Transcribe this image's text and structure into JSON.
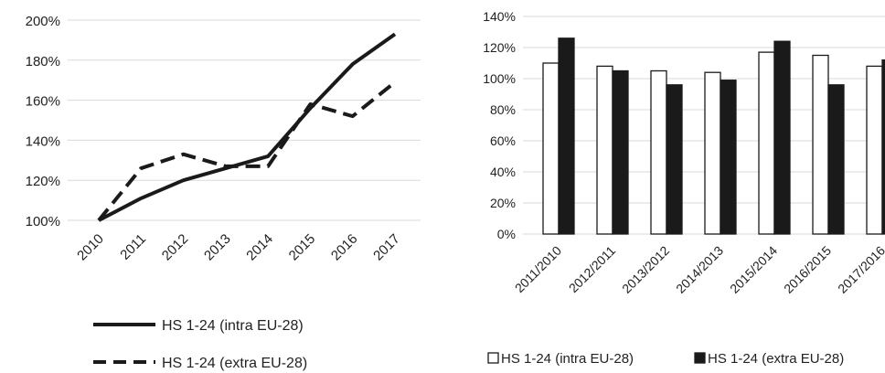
{
  "chart_data": [
    {
      "type": "line",
      "x": [
        "2010",
        "2011",
        "2012",
        "2013",
        "2014",
        "2015",
        "2016",
        "2017"
      ],
      "series": [
        {
          "name": "HS 1-24 (intra EU-28)",
          "style": "solid",
          "values": [
            100,
            111,
            120,
            126,
            132,
            156,
            178,
            193
          ]
        },
        {
          "name": "HS 1-24 (extra EU-28)",
          "style": "dashed",
          "values": [
            100,
            126,
            133,
            127,
            127,
            158,
            152,
            169
          ]
        }
      ],
      "ylim": [
        100,
        200
      ],
      "yticks": [
        "100%",
        "120%",
        "140%",
        "160%",
        "180%",
        "200%"
      ],
      "grid": true,
      "legend_position": "bottom",
      "colors": {
        "line": "#1a1a1a",
        "grid": "#d9d9d9"
      }
    },
    {
      "type": "bar",
      "categories": [
        "2011/2010",
        "2012/2011",
        "2013/2012",
        "2014/2013",
        "2015/2014",
        "2016/2015",
        "2017/2016"
      ],
      "series": [
        {
          "name": "HS 1-24 (intra EU-28)",
          "fill": "white",
          "values": [
            110,
            108,
            105,
            104,
            117,
            115,
            108
          ]
        },
        {
          "name": "HS 1-24 (extra EU-28)",
          "fill": "dark",
          "values": [
            126,
            105,
            96,
            99,
            124,
            96,
            112
          ]
        }
      ],
      "ylim": [
        0,
        140
      ],
      "yticks": [
        "0%",
        "20%",
        "40%",
        "60%",
        "80%",
        "100%",
        "120%",
        "140%"
      ],
      "grid": true,
      "legend_position": "bottom",
      "colors": {
        "bar_dark": "#1a1a1a",
        "grid": "#d9d9d9"
      }
    }
  ]
}
